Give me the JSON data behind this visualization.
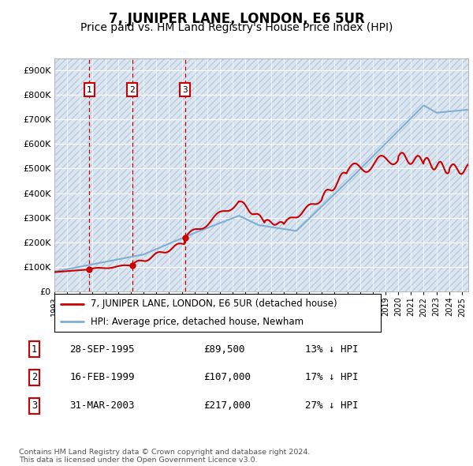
{
  "title": "7, JUNIPER LANE, LONDON, E6 5UR",
  "subtitle": "Price paid vs. HM Land Registry's House Price Index (HPI)",
  "ylim": [
    0,
    950000
  ],
  "yticks": [
    0,
    100000,
    200000,
    300000,
    400000,
    500000,
    600000,
    700000,
    800000,
    900000
  ],
  "ytick_labels": [
    "£0",
    "£100K",
    "£200K",
    "£300K",
    "£400K",
    "£500K",
    "£600K",
    "£700K",
    "£800K",
    "£900K"
  ],
  "xlim_start": 1993.0,
  "xlim_end": 2025.5,
  "background_color": "#ffffff",
  "plot_bg_color": "#dce6f1",
  "hatch_color": "#b8cce0",
  "grid_color": "#ffffff",
  "red_line_color": "#cc0000",
  "blue_line_color": "#7fafd4",
  "sale_dates": [
    1995.74,
    1999.12,
    2003.25
  ],
  "sale_prices": [
    89500,
    107000,
    217000
  ],
  "sale_labels": [
    "1",
    "2",
    "3"
  ],
  "legend_red": "7, JUNIPER LANE, LONDON, E6 5UR (detached house)",
  "legend_blue": "HPI: Average price, detached house, Newham",
  "table_rows": [
    [
      "1",
      "28-SEP-1995",
      "£89,500",
      "13% ↓ HPI"
    ],
    [
      "2",
      "16-FEB-1999",
      "£107,000",
      "17% ↓ HPI"
    ],
    [
      "3",
      "31-MAR-2003",
      "£217,000",
      "27% ↓ HPI"
    ]
  ],
  "footnote": "Contains HM Land Registry data © Crown copyright and database right 2024.\nThis data is licensed under the Open Government Licence v3.0.",
  "title_fontsize": 12,
  "subtitle_fontsize": 10,
  "tick_fontsize": 8,
  "legend_fontsize": 8.5,
  "table_fontsize": 9
}
